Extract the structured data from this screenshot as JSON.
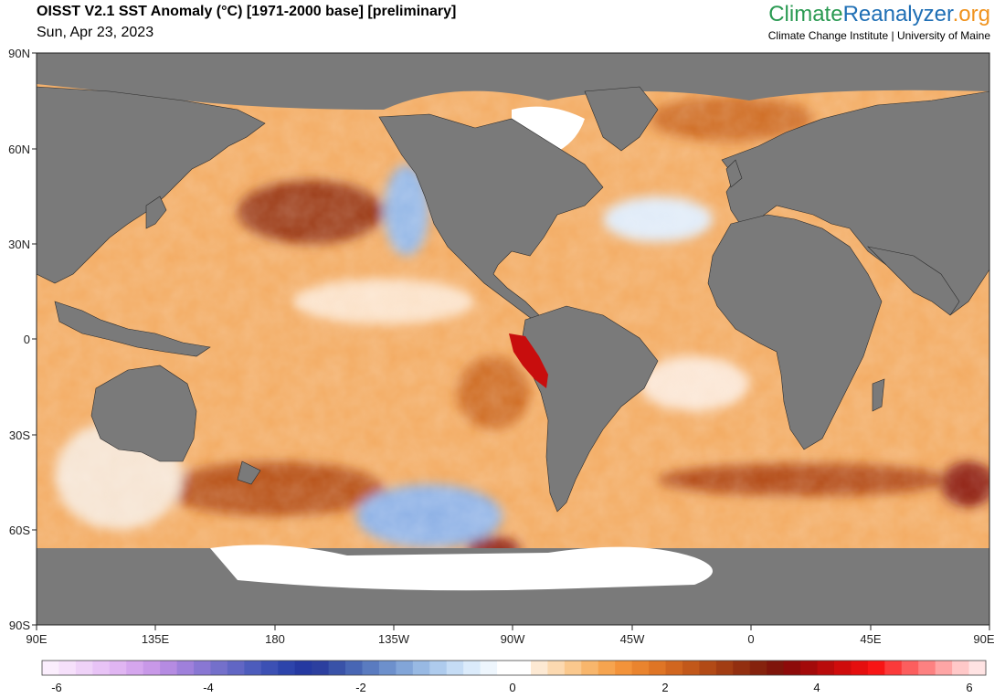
{
  "header": {
    "title": "OISST V2.1 SST Anomaly (°C) [1971-2000 base] [preliminary]",
    "date": "Sun, Apr 23, 2023",
    "brand_part1": "Climate",
    "brand_part2": "Reanalyzer",
    "brand_part3": ".org",
    "brand_sub": "Climate Change Institute | University of Maine"
  },
  "axes": {
    "y_ticks": [
      "90N",
      "60N",
      "30N",
      "0",
      "30S",
      "60S",
      "90S"
    ],
    "x_ticks": [
      "90E",
      "135E",
      "180",
      "135W",
      "90W",
      "45W",
      "0",
      "45E",
      "90E"
    ]
  },
  "colorbar": {
    "tick_labels": [
      "-6",
      "-4",
      "-2",
      "0",
      "2",
      "4",
      "6"
    ],
    "colors": [
      "#fbeefd",
      "#f6e0fb",
      "#efd2f8",
      "#e8c3f6",
      "#e0b5f2",
      "#d5a6ee",
      "#c898e8",
      "#b58be2",
      "#9f80db",
      "#8977d3",
      "#7470cb",
      "#6166c4",
      "#4d5cbc",
      "#3c50b4",
      "#2d44ab",
      "#2539a1",
      "#2c3f9f",
      "#3952a8",
      "#4866b4",
      "#5a7bc0",
      "#6d90cc",
      "#82a5d8",
      "#98b9e3",
      "#aecbed",
      "#c5dcf5",
      "#dbebfb",
      "#eef6fd",
      "#ffffff",
      "#ffffff",
      "#fde9d3",
      "#fcd9b0",
      "#fac88d",
      "#f8b66c",
      "#f6a44f",
      "#f3933a",
      "#ea842e",
      "#df7525",
      "#d1661f",
      "#c2581a",
      "#b24a16",
      "#a23d13",
      "#922f10",
      "#85220d",
      "#7f150b",
      "#8d0b0a",
      "#a30a0a",
      "#b90b0b",
      "#cf0c0c",
      "#e50e0e",
      "#f81515",
      "#fb3a3a",
      "#fc5e5e",
      "#fd8181",
      "#fea5a5",
      "#ffc8c8",
      "#ffe3e3"
    ],
    "colors_note": ""
  },
  "colors": {
    "land": "#7a7a7a",
    "ice": "#ffffff",
    "ocean_base": "#f2a85a",
    "warm": "#c9651f",
    "hot": "#8e1b0d",
    "very_hot": "#c80d0d",
    "cool": "#a9c6ee",
    "cold": "#5b7fcc"
  }
}
